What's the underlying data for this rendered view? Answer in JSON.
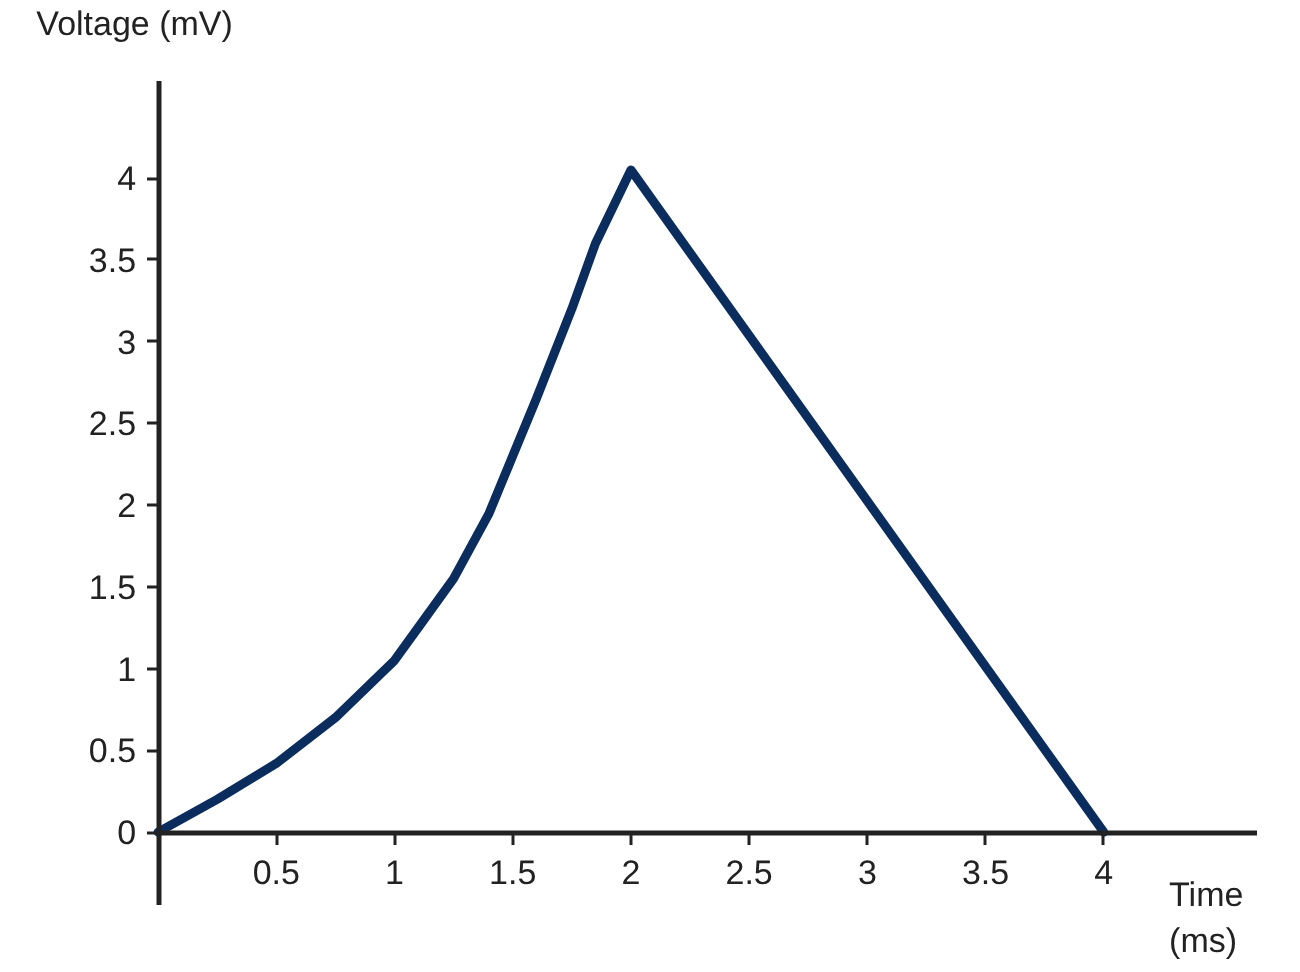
{
  "chart_data": {
    "type": "line",
    "xlabel": "Time\n(ms)",
    "ylabel": "Voltage (mV)",
    "x": [
      0,
      0.25,
      0.5,
      0.75,
      1,
      1.1,
      1.25,
      1.4,
      1.5,
      1.6,
      1.75,
      1.85,
      2,
      4
    ],
    "series": [
      {
        "color": "#0b2d5e",
        "values": [
          0,
          0.2,
          0.42,
          0.7,
          1.05,
          1.25,
          1.55,
          1.95,
          2.3,
          2.65,
          3.2,
          3.6,
          4.05,
          0
        ]
      }
    ],
    "xlim": [
      0,
      4.65
    ],
    "ylim": [
      -0.45,
      4.6
    ],
    "xticks": [
      0.5,
      1,
      1.5,
      2,
      2.5,
      3,
      3.5,
      4
    ],
    "yticks": [
      0,
      0.5,
      1,
      1.5,
      2,
      2.5,
      3,
      3.5,
      4
    ],
    "grid": false,
    "marker": "none",
    "line_style": "solid"
  }
}
